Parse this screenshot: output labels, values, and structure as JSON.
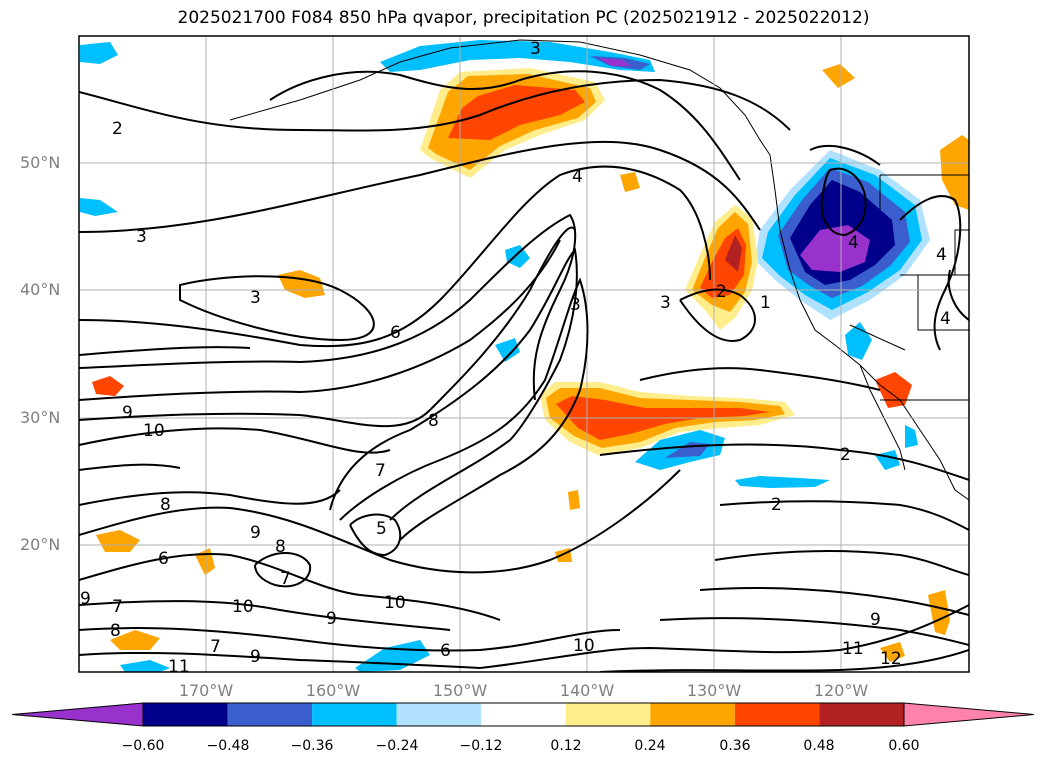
{
  "title": "2025021700 F084 850 hPa qvapor, precipitation PC (2025021912 - 2025022012)",
  "map": {
    "lat_labels": [
      "50°N",
      "40°N",
      "30°N",
      "20°N"
    ],
    "lon_labels": [
      "170°W",
      "160°W",
      "150°W",
      "140°W",
      "130°W",
      "120°W"
    ],
    "contour_labels": [
      "3",
      "3",
      "3",
      "4",
      "6",
      "8",
      "9",
      "10",
      "7",
      "5",
      "8",
      "9",
      "8",
      "6",
      "7",
      "10",
      "9",
      "10",
      "7",
      "6",
      "9",
      "10",
      "11",
      "12",
      "2",
      "2",
      "3",
      "3",
      "4",
      "4",
      "4",
      "2",
      "1",
      "2",
      "9",
      "11",
      "8",
      "7",
      "9"
    ]
  },
  "colorbar": {
    "ticks": [
      "−0.60",
      "−0.48",
      "−0.36",
      "−0.24",
      "−0.12",
      "0.12",
      "0.24",
      "0.36",
      "0.48",
      "0.60"
    ],
    "colors": [
      "#9932cc",
      "#00008b",
      "#3a5fcd",
      "#00bfff",
      "#b0e2ff",
      "#ffffff",
      "#ffec8b",
      "#ffa500",
      "#ff4500",
      "#b22222",
      "#ff82ab"
    ]
  }
}
